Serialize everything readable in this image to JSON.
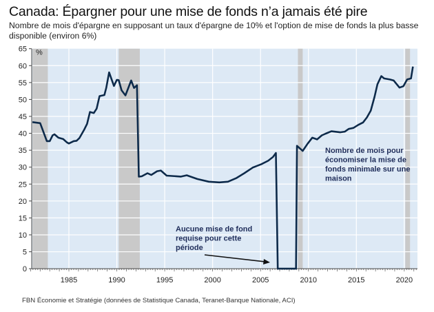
{
  "chart_data": {
    "type": "line",
    "title": "Canada: Épargner pour une mise de fonds n’a jamais été pire",
    "subtitle": "Nombre de mois d'épargne en supposant un taux d'épargne de 10% et l'option de mise de fonds la plus basse disponible (environ 6%)",
    "ylabel": "%",
    "xlabel": "",
    "ylim": [
      0,
      65
    ],
    "xlim": [
      1981,
      2021.4
    ],
    "yticks": [
      "0",
      "5",
      "10",
      "15",
      "20",
      "25",
      "30",
      "35",
      "40",
      "45",
      "50",
      "55",
      "60",
      "65"
    ],
    "xticks": [
      "1985",
      "1990",
      "1995",
      "2000",
      "2005",
      "2010",
      "2015",
      "2020"
    ],
    "grid": true,
    "recessions": [
      [
        1981.2,
        1982.8
      ],
      [
        1990.2,
        1992.4
      ],
      [
        2008.9,
        2009.4
      ],
      [
        2020.1,
        2020.6
      ]
    ],
    "series": [
      {
        "name": "Nombre de mois d'épargne",
        "color": "#0d2a4a",
        "points": [
          [
            1981.2,
            43.3
          ],
          [
            1982.0,
            43.0
          ],
          [
            1982.7,
            37.7
          ],
          [
            1983.0,
            37.7
          ],
          [
            1983.3,
            39.4
          ],
          [
            1983.5,
            39.7
          ],
          [
            1983.9,
            38.7
          ],
          [
            1984.4,
            38.3
          ],
          [
            1984.8,
            37.3
          ],
          [
            1985.0,
            37.0
          ],
          [
            1985.5,
            37.7
          ],
          [
            1985.8,
            37.8
          ],
          [
            1986.1,
            38.6
          ],
          [
            1986.6,
            41.1
          ],
          [
            1986.9,
            42.8
          ],
          [
            1987.2,
            46.3
          ],
          [
            1987.6,
            46.0
          ],
          [
            1987.9,
            47.3
          ],
          [
            1988.2,
            51.0
          ],
          [
            1988.7,
            51.3
          ],
          [
            1988.9,
            53.4
          ],
          [
            1989.2,
            58.0
          ],
          [
            1989.7,
            54.0
          ],
          [
            1990.0,
            55.8
          ],
          [
            1990.2,
            55.7
          ],
          [
            1990.5,
            52.7
          ],
          [
            1990.9,
            51.2
          ],
          [
            1991.5,
            55.6
          ],
          [
            1991.8,
            53.4
          ],
          [
            1992.1,
            54.2
          ],
          [
            1992.3,
            27.2
          ],
          [
            1992.6,
            27.3
          ],
          [
            1993.2,
            28.2
          ],
          [
            1993.6,
            27.7
          ],
          [
            1994.2,
            28.8
          ],
          [
            1994.6,
            29.0
          ],
          [
            1995.2,
            27.5
          ],
          [
            1996.7,
            27.2
          ],
          [
            1997.3,
            27.6
          ],
          [
            1998.4,
            26.5
          ],
          [
            1999.6,
            25.7
          ],
          [
            2000.7,
            25.5
          ],
          [
            2001.6,
            25.7
          ],
          [
            2002.5,
            26.8
          ],
          [
            2003.3,
            28.2
          ],
          [
            2004.2,
            29.9
          ],
          [
            2005.1,
            30.9
          ],
          [
            2005.8,
            31.9
          ],
          [
            2006.3,
            33.0
          ],
          [
            2006.6,
            34.2
          ],
          [
            2006.8,
            0
          ],
          [
            2008.7,
            0
          ],
          [
            2008.8,
            36.3
          ],
          [
            2009.4,
            34.8
          ],
          [
            2009.9,
            36.9
          ],
          [
            2010.4,
            38.7
          ],
          [
            2010.9,
            38.2
          ],
          [
            2011.4,
            39.4
          ],
          [
            2011.8,
            39.9
          ],
          [
            2012.4,
            40.6
          ],
          [
            2013.3,
            40.3
          ],
          [
            2013.8,
            40.5
          ],
          [
            2014.2,
            41.3
          ],
          [
            2014.7,
            41.6
          ],
          [
            2015.2,
            42.5
          ],
          [
            2015.7,
            43.2
          ],
          [
            2016.1,
            44.7
          ],
          [
            2016.5,
            46.7
          ],
          [
            2016.9,
            50.8
          ],
          [
            2017.2,
            54.5
          ],
          [
            2017.6,
            56.9
          ],
          [
            2017.9,
            56.2
          ],
          [
            2018.5,
            55.9
          ],
          [
            2018.9,
            55.6
          ],
          [
            2019.5,
            53.5
          ],
          [
            2019.9,
            53.9
          ],
          [
            2020.3,
            55.9
          ],
          [
            2020.7,
            56.2
          ],
          [
            2020.9,
            59.7
          ]
        ]
      }
    ],
    "annotations": [
      {
        "lines": [
          "Nombre de mois pour",
          "économiser la mise de",
          "fonds minimale sur une",
          "maison"
        ]
      },
      {
        "lines": [
          "Aucune mise de fond",
          "requise pour cette",
          "période"
        ]
      }
    ],
    "source": "FBN Économie et Stratégie (données de Statistique Canada, Teranet-Banque Nationale, ACI)"
  }
}
